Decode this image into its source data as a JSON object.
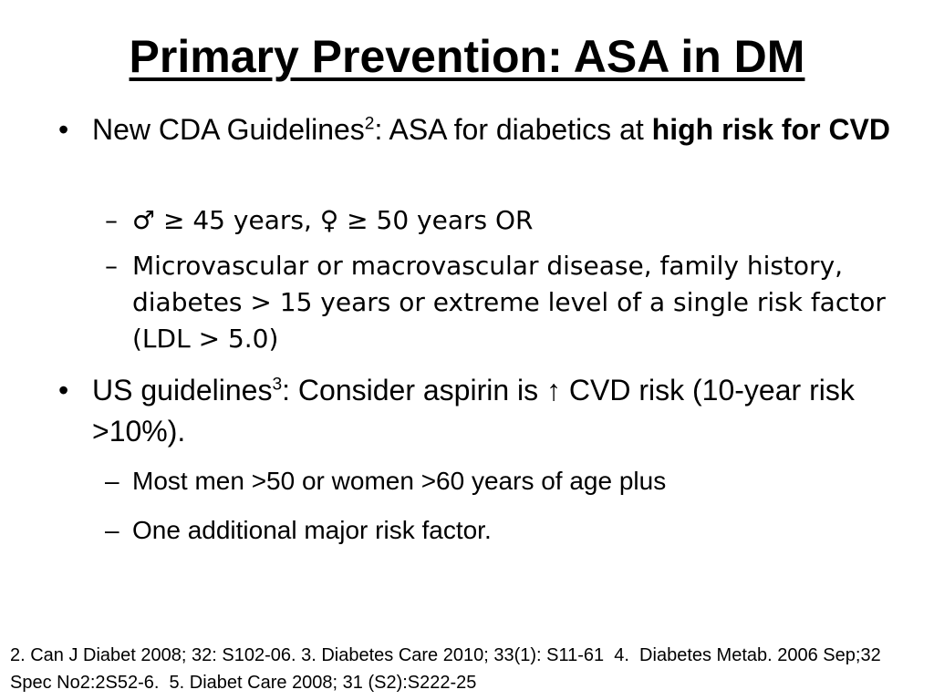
{
  "title": "Primary Prevention: ASA in DM",
  "bullets": [
    {
      "marker": "•",
      "text_pre": "New CDA Guidelines",
      "sup": "2",
      "text_mid": ": ASA for diabetics at ",
      "text_bold": "high risk for CVD",
      "subitems": [
        {
          "marker": "–",
          "text": "♂ ≥ 45 years, ♀ ≥ 50 years OR"
        },
        {
          "marker": "–",
          "text": "Microvascular or macrovascular disease, family history, diabetes > 15 years or extreme level of a single risk factor (LDL > 5.0)"
        }
      ]
    },
    {
      "marker": "•",
      "text_pre": "US guidelines",
      "sup": "3",
      "text_mid": ": Consider aspirin is ↑ CVD risk (10-year risk >10%).",
      "subitems": [
        {
          "marker": "–",
          "text": "Most men >50 or women >60 years of age plus"
        },
        {
          "marker": "–",
          "text": "One additional major risk factor."
        }
      ]
    }
  ],
  "footnote": "2. Can J Diabet 2008; 32: S102-06. 3. Diabetes Care 2010; 33(1): S11-61  4.  Diabetes Metab. 2006 Sep;32 Spec No2:2S52-6.  5. Diabet Care 2008; 31 (S2):S222-25"
}
